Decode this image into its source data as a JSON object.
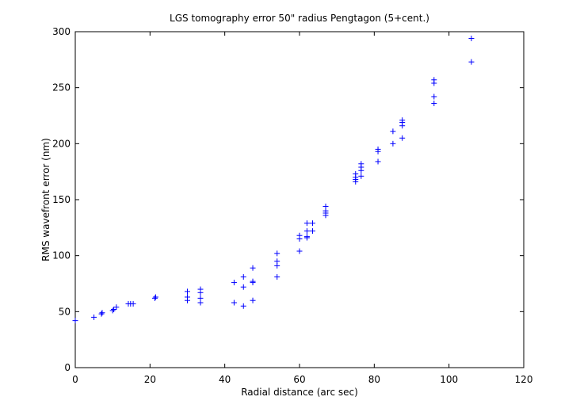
{
  "chart_data": {
    "type": "scatter",
    "title": "LGS tomography error 50\" radius Pengtagon (5+cent.)",
    "xlabel": "Radial distance (arc sec)",
    "ylabel": "RMS wavefront error (nm)",
    "xlim": [
      0,
      120
    ],
    "ylim": [
      0,
      300
    ],
    "xticks": [
      0,
      20,
      40,
      60,
      80,
      100,
      120
    ],
    "yticks": [
      0,
      50,
      100,
      150,
      200,
      250,
      300
    ],
    "grid": false,
    "marker": "+",
    "color": "#0000ff",
    "points": [
      [
        0,
        42
      ],
      [
        5,
        45
      ],
      [
        7,
        48
      ],
      [
        7.2,
        49
      ],
      [
        10,
        51
      ],
      [
        10.3,
        52
      ],
      [
        11,
        54
      ],
      [
        14.2,
        57
      ],
      [
        14.8,
        57
      ],
      [
        15.5,
        57
      ],
      [
        21.3,
        62
      ],
      [
        21.5,
        63
      ],
      [
        30,
        60
      ],
      [
        30,
        63
      ],
      [
        30,
        68
      ],
      [
        33.5,
        58
      ],
      [
        33.5,
        62
      ],
      [
        33.5,
        67
      ],
      [
        33.5,
        70
      ],
      [
        42.5,
        58
      ],
      [
        42.5,
        76
      ],
      [
        45,
        55
      ],
      [
        45,
        72
      ],
      [
        45,
        81
      ],
      [
        47.5,
        60
      ],
      [
        47.5,
        76
      ],
      [
        47.5,
        77
      ],
      [
        47.5,
        89
      ],
      [
        54,
        81
      ],
      [
        54,
        91
      ],
      [
        54,
        95
      ],
      [
        54,
        102
      ],
      [
        60,
        104
      ],
      [
        60,
        115
      ],
      [
        60,
        118
      ],
      [
        62,
        116
      ],
      [
        62,
        117
      ],
      [
        62,
        122
      ],
      [
        62,
        129
      ],
      [
        63.5,
        122
      ],
      [
        63.5,
        129
      ],
      [
        67,
        136
      ],
      [
        67,
        138
      ],
      [
        67,
        140
      ],
      [
        67,
        144
      ],
      [
        75,
        166
      ],
      [
        75,
        168
      ],
      [
        75,
        170
      ],
      [
        75,
        173
      ],
      [
        76.5,
        171
      ],
      [
        76.5,
        176
      ],
      [
        76.5,
        179
      ],
      [
        76.5,
        182
      ],
      [
        81,
        184
      ],
      [
        81,
        193
      ],
      [
        81,
        195
      ],
      [
        85,
        200
      ],
      [
        85,
        211
      ],
      [
        87.5,
        205
      ],
      [
        87.5,
        216
      ],
      [
        87.5,
        219
      ],
      [
        87.5,
        221
      ],
      [
        96,
        236
      ],
      [
        96,
        242
      ],
      [
        96,
        254
      ],
      [
        96,
        257
      ],
      [
        106,
        273
      ],
      [
        106,
        294
      ]
    ]
  }
}
